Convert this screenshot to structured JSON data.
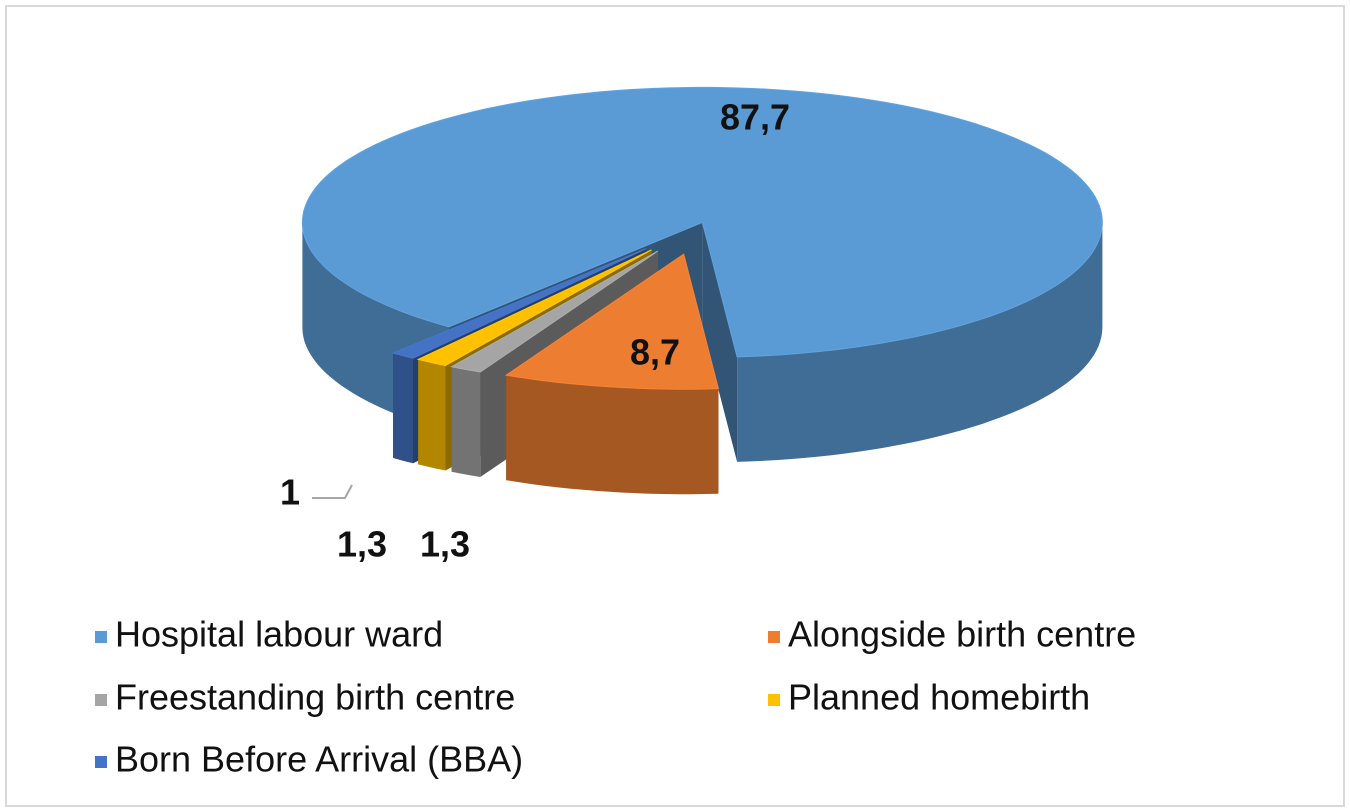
{
  "chart_data": {
    "type": "pie3d",
    "categories": [
      "Hospital labour ward",
      "Alongside birth centre",
      "Freestanding birth centre",
      "Planned homebirth",
      "Born Before Arrival (BBA)"
    ],
    "values": [
      87.7,
      8.7,
      1.3,
      1.3,
      1
    ],
    "value_labels": [
      "87,7",
      "8,7",
      "1,3",
      "1,3",
      "1"
    ],
    "colors": [
      "#5b9bd5",
      "#ed7d31",
      "#a5a5a5",
      "#ffc000",
      "#4472c4"
    ],
    "legend": "bottom"
  }
}
